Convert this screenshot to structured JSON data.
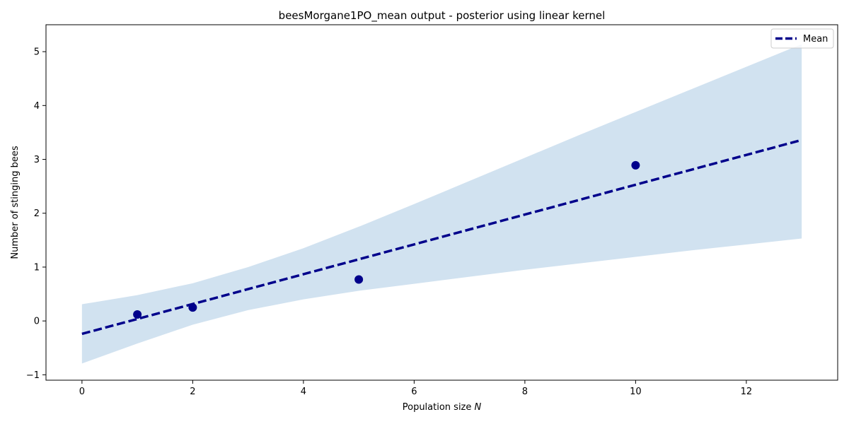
{
  "chart_data": {
    "type": "line",
    "title": "beesMorgane1PO_mean output - posterior using linear kernel",
    "xlabel": "Population size",
    "xlabel_symbol": "N",
    "ylabel": "Number of stinging bees",
    "xlim": [
      -0.65,
      13.65
    ],
    "ylim": [
      -1.1,
      5.5
    ],
    "xticks": [
      0,
      2,
      4,
      6,
      8,
      10,
      12
    ],
    "yticks": [
      -1,
      0,
      1,
      2,
      3,
      4,
      5
    ],
    "grid": false,
    "legend_position": "top-right",
    "series": [
      {
        "name": "Mean",
        "kind": "line",
        "style": "dashed",
        "color": "#00008b",
        "x": [
          0,
          13
        ],
        "y": [
          -0.24,
          3.36
        ]
      },
      {
        "kind": "scatter",
        "color": "#00008b",
        "x": [
          1,
          2,
          5,
          10
        ],
        "y": [
          0.12,
          0.25,
          0.77,
          2.89
        ]
      },
      {
        "kind": "band",
        "color": "#c6dbec",
        "x": [
          0,
          1,
          2,
          3,
          4,
          5,
          6,
          7,
          8,
          9,
          10,
          11,
          12,
          13
        ],
        "lower": [
          -0.79,
          -0.42,
          -0.07,
          0.2,
          0.4,
          0.56,
          0.69,
          0.82,
          0.95,
          1.07,
          1.19,
          1.31,
          1.42,
          1.53
        ],
        "upper": [
          0.31,
          0.48,
          0.7,
          1.0,
          1.35,
          1.75,
          2.17,
          2.6,
          3.03,
          3.46,
          3.88,
          4.3,
          4.72,
          5.14
        ]
      }
    ]
  }
}
